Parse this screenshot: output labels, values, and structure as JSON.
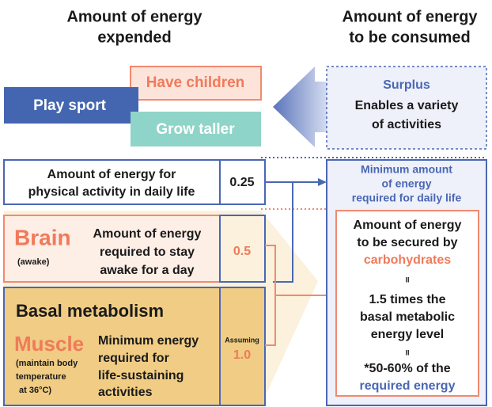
{
  "left_header": [
    "Amount of energy",
    "expended"
  ],
  "right_header": [
    "Amount of energy",
    "to be consumed"
  ],
  "activities": {
    "have_children": "Have children",
    "play_sport": "Play sport",
    "grow_taller": "Grow taller"
  },
  "surplus": {
    "title": "Surplus",
    "lines": [
      "Enables a variety",
      "of activities"
    ]
  },
  "physical_activity": {
    "lines": [
      "Amount of energy for",
      "physical activity in daily life"
    ],
    "value": "0.25"
  },
  "brain": {
    "title": "Brain",
    "note": "(awake)",
    "lines": [
      "Amount of energy",
      "required to stay",
      "awake for a day"
    ],
    "value": "0.5"
  },
  "basal": {
    "title": "Basal metabolism",
    "muscle": "Muscle",
    "note": [
      "(maintain body",
      "temperature",
      "at 36°C)"
    ],
    "lines": [
      "Minimum energy",
      "required for",
      "life-sustaining",
      "activities"
    ],
    "assuming": "Assuming",
    "value": "1.0"
  },
  "minimum": {
    "lines": [
      "Minimum amount",
      "of energy",
      "required for daily life"
    ]
  },
  "carbs": {
    "lines": [
      "Amount of energy",
      "to be secured by"
    ],
    "highlight": "carbohydrates",
    "eq1": "II",
    "middle": [
      "1.5 times the",
      "basal metabolic",
      "energy level"
    ],
    "eq2": "II",
    "percent": "*50-60% of the",
    "required": "required energy"
  }
}
